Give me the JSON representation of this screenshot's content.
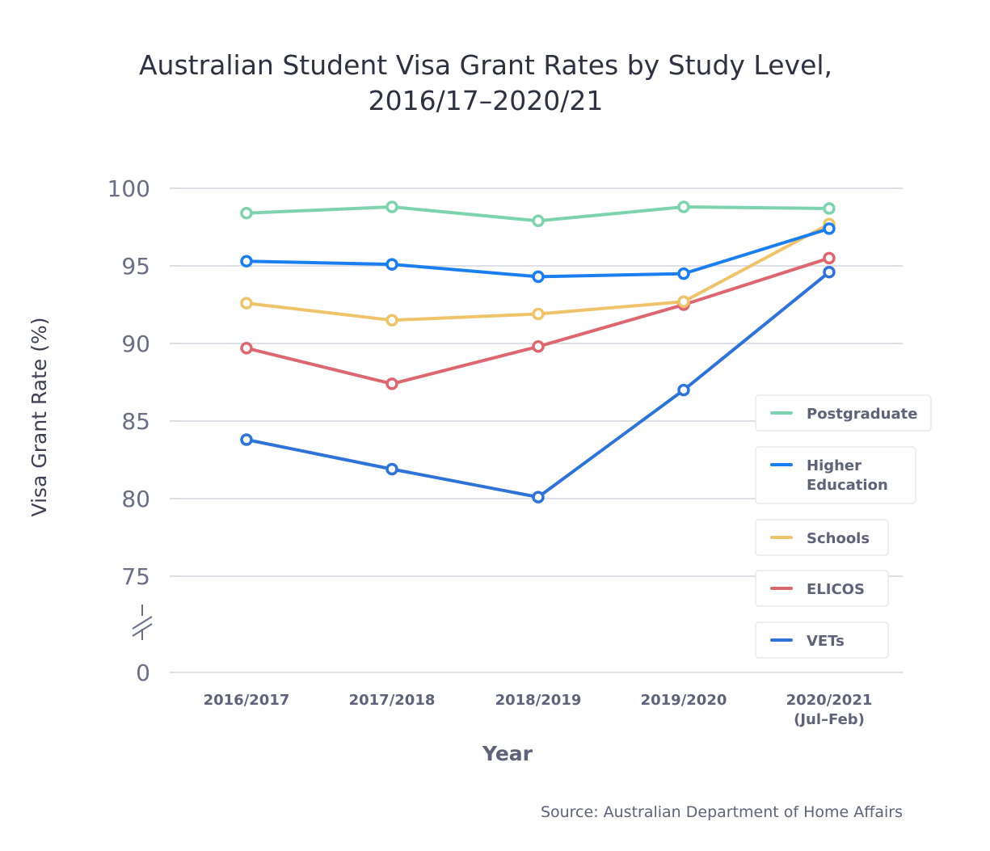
{
  "chart_data": {
    "type": "line",
    "title_line1": "Australian Student Visa Grant Rates by Study Level,",
    "title_line2": "2016/17–2020/21",
    "xlabel": "Year",
    "ylabel": "Visa Grant Rate (%)",
    "source": "Source: Australian Department of Home Affairs",
    "categories": [
      [
        "2016/2017"
      ],
      [
        "2017/2018"
      ],
      [
        "2018/2019"
      ],
      [
        "2019/2020"
      ],
      [
        "2020/2021",
        "(Jul–Feb)"
      ]
    ],
    "y_ticks": [
      "100",
      "95",
      "90",
      "85",
      "80",
      "75",
      "0"
    ],
    "ylim": [
      75,
      100
    ],
    "axis_break": true,
    "grid": true,
    "legend_position": "right",
    "series": [
      {
        "name": [
          "Postgraduate"
        ],
        "color": "#7dd3ad",
        "values": [
          98.4,
          98.8,
          97.9,
          98.8,
          98.7
        ]
      },
      {
        "name": [
          "Higher",
          "Education"
        ],
        "color": "#1a7ef0",
        "values": [
          95.3,
          95.1,
          94.3,
          94.5,
          97.4
        ]
      },
      {
        "name": [
          "Schools"
        ],
        "color": "#eec36a",
        "values": [
          92.6,
          91.5,
          91.9,
          92.7,
          97.7
        ]
      },
      {
        "name": [
          "ELICOS"
        ],
        "color": "#de6670",
        "values": [
          89.7,
          87.4,
          89.8,
          92.5,
          95.5
        ]
      },
      {
        "name": [
          "VETs"
        ],
        "color": "#2f72d8",
        "values": [
          83.8,
          81.9,
          80.1,
          87.0,
          94.6
        ]
      }
    ]
  }
}
